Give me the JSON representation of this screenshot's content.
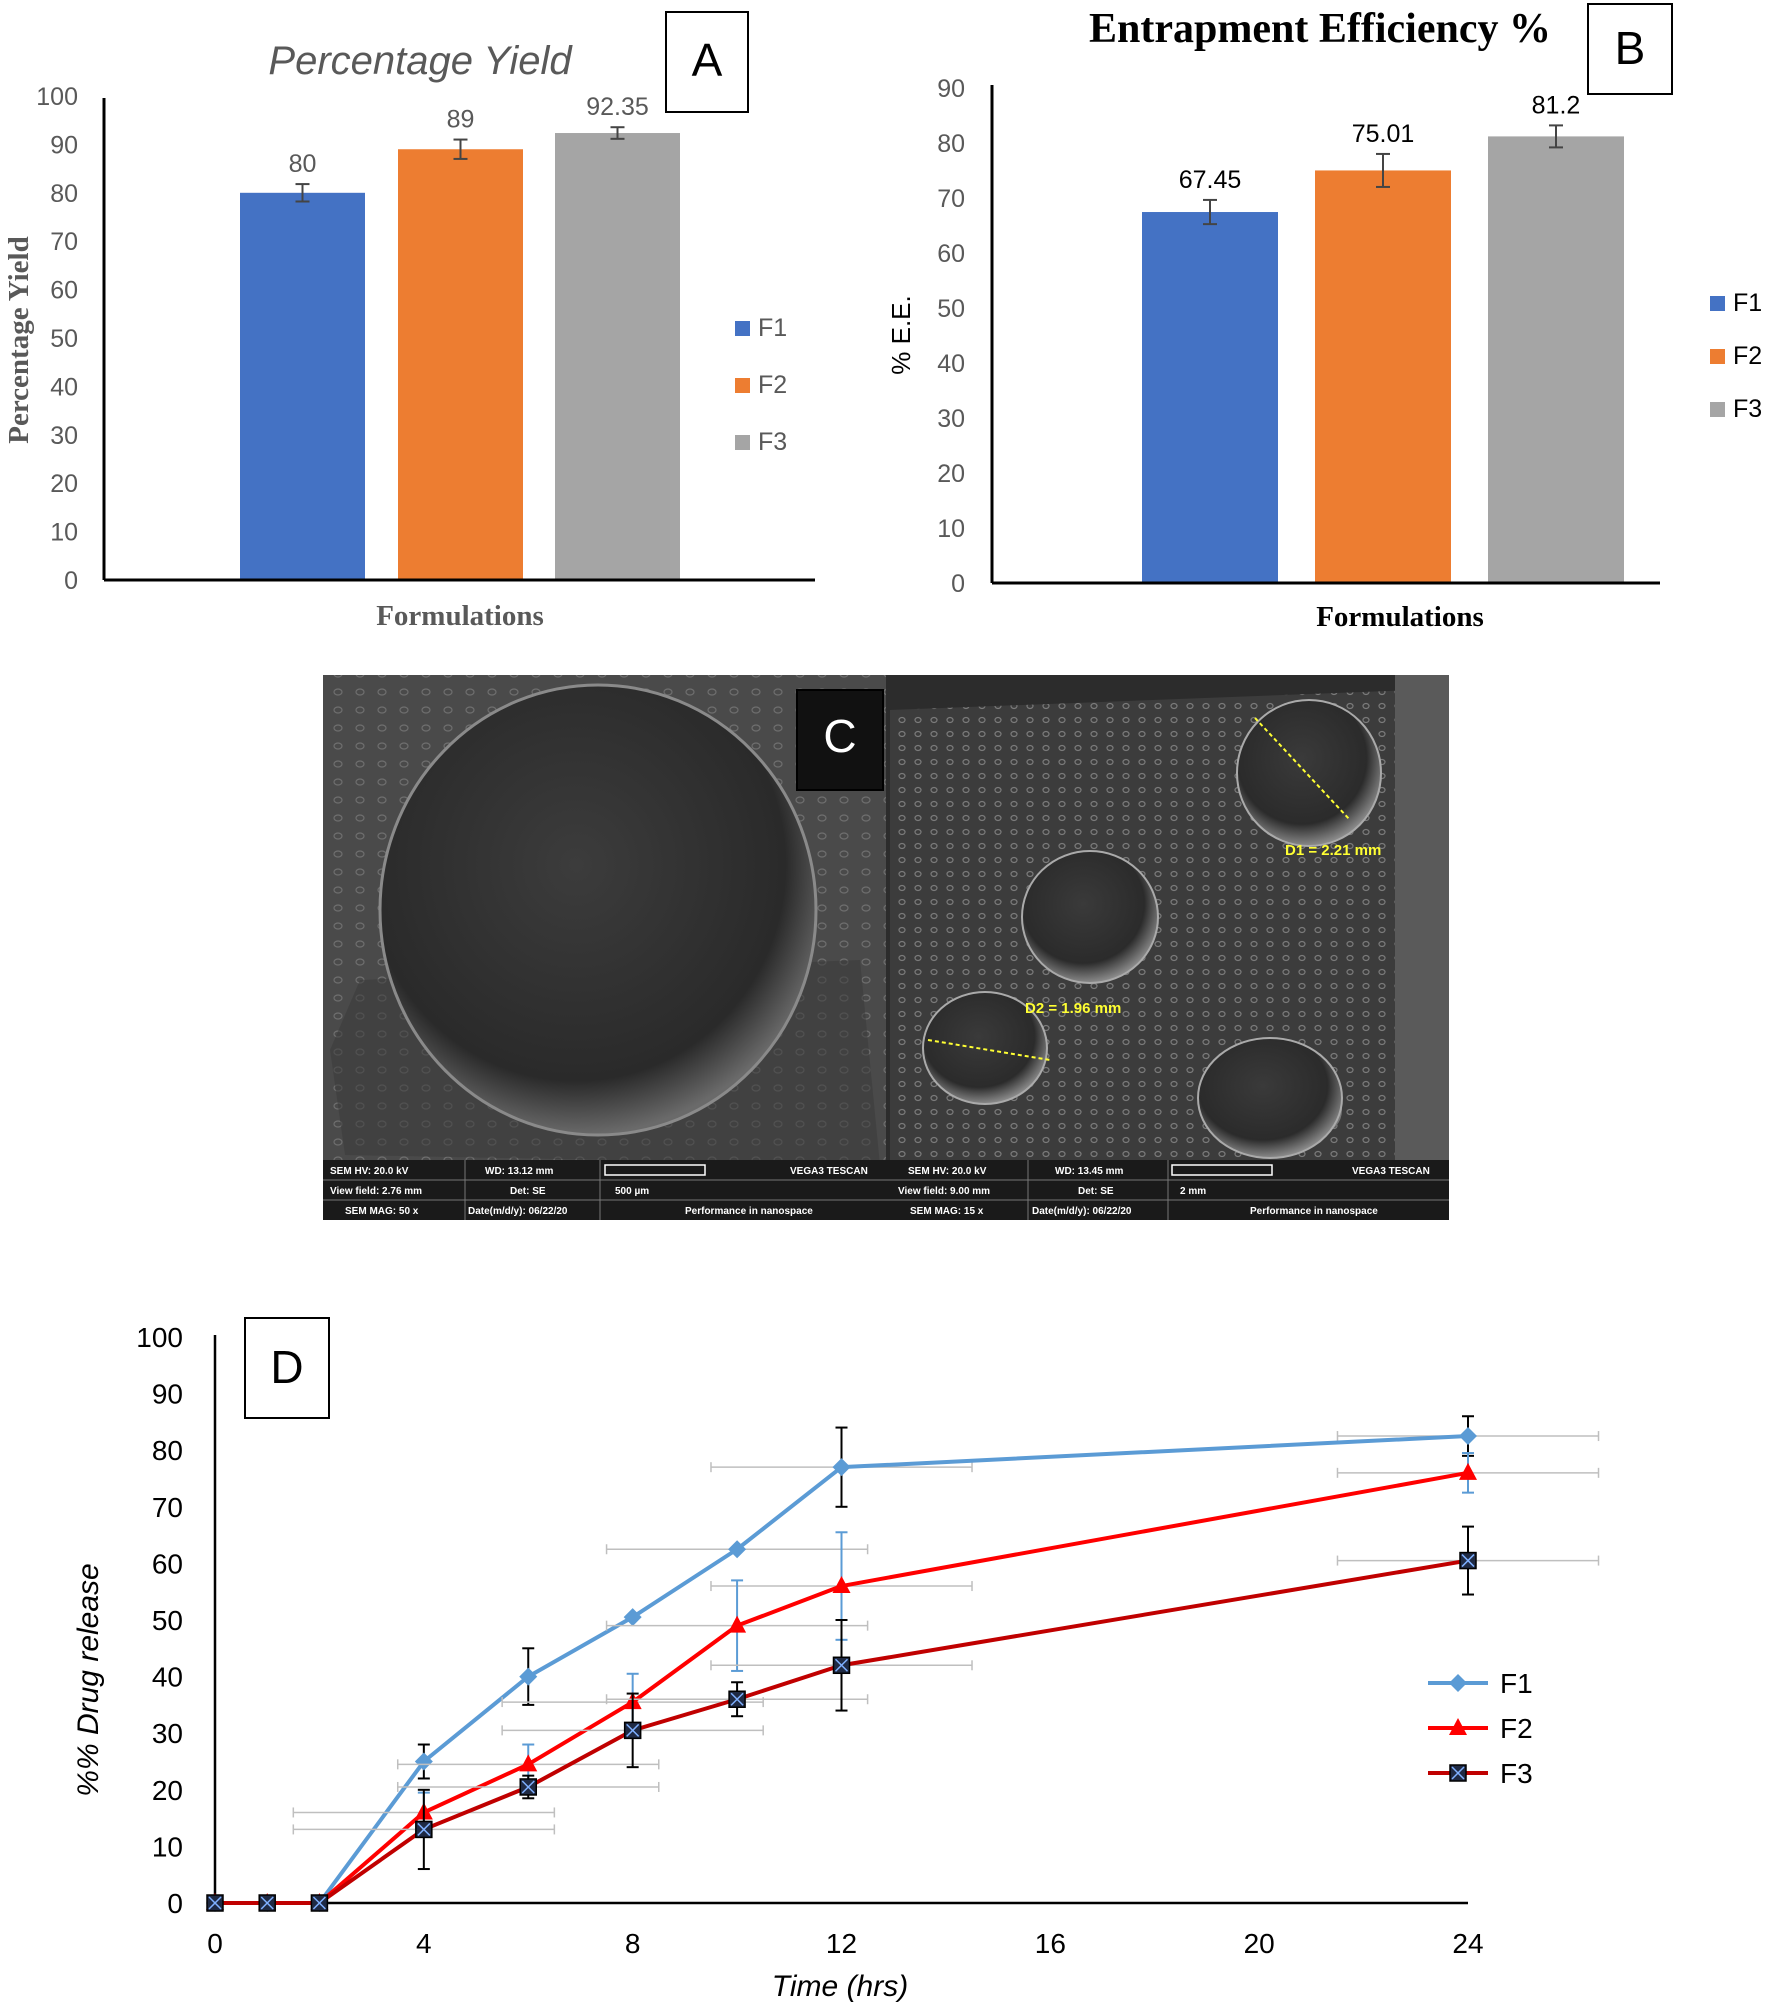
{
  "colors": {
    "f1": "#4472C4",
    "f2": "#ED7D31",
    "f3": "#A5A5A5",
    "lineF1": "#5B9BD5",
    "lineF2": "#FF0000",
    "lineF3": "#C00000"
  },
  "chart_data": [
    {
      "panel": "A",
      "type": "bar",
      "title": "Percentage Yield",
      "xlabel": "Formulations",
      "ylabel": "Percentage Yield",
      "ylim": [
        0,
        100
      ],
      "yticks": [
        "0",
        "10",
        "20",
        "30",
        "40",
        "50",
        "60",
        "70",
        "80",
        "90",
        "100"
      ],
      "series": [
        {
          "name": "F1",
          "value": 80,
          "label": "80",
          "error": 1.8
        },
        {
          "name": "F2",
          "value": 89,
          "label": "89",
          "error": 2.0
        },
        {
          "name": "F3",
          "value": 92.35,
          "label": "92.35",
          "error": 1.2
        }
      ],
      "legend_position": "right"
    },
    {
      "panel": "B",
      "type": "bar",
      "title": "Entrapment Efficiency %",
      "xlabel": "Formulations",
      "ylabel": "% E.E.",
      "ylim": [
        0,
        90
      ],
      "yticks": [
        "0",
        "10",
        "20",
        "30",
        "40",
        "50",
        "60",
        "70",
        "80",
        "90"
      ],
      "series": [
        {
          "name": "F1",
          "value": 67.45,
          "label": "67.45",
          "error": 2.2
        },
        {
          "name": "F2",
          "value": 75.01,
          "label": "75.01",
          "error": 3.0
        },
        {
          "name": "F3",
          "value": 81.2,
          "label": "81.2",
          "error": 2.0
        }
      ],
      "legend_position": "right"
    },
    {
      "panel": "D",
      "type": "line",
      "xlabel": "Time (hrs)",
      "ylabel": "%% Drug release",
      "xlim": [
        0,
        24
      ],
      "ylim": [
        0,
        100
      ],
      "xticks": [
        "0",
        "4",
        "8",
        "12",
        "16",
        "20",
        "24"
      ],
      "yticks": [
        "0",
        "10",
        "20",
        "30",
        "40",
        "50",
        "60",
        "70",
        "80",
        "90",
        "100"
      ],
      "x": [
        0,
        1,
        2,
        4,
        6,
        8,
        10,
        12,
        24
      ],
      "series": [
        {
          "name": "F1",
          "marker": "diamond",
          "values": [
            0,
            0,
            0,
            25,
            40,
            50.5,
            62.5,
            77,
            82.5
          ],
          "yerr": [
            0,
            0,
            0,
            3,
            5,
            0,
            0,
            7,
            3.5
          ],
          "xerr": [
            0,
            0,
            0,
            0,
            0,
            0,
            2.5,
            2.5,
            2.5
          ]
        },
        {
          "name": "F2",
          "marker": "triangle",
          "values": [
            0,
            0,
            0,
            16,
            24.5,
            35.5,
            49,
            56,
            76
          ],
          "yerr": [
            0,
            0,
            0,
            3.5,
            3.5,
            5,
            8,
            9.5,
            3.5
          ],
          "xerr": [
            0,
            0,
            0,
            2.5,
            2.5,
            2.5,
            2.5,
            2.5,
            2.5
          ]
        },
        {
          "name": "F3",
          "marker": "x-square",
          "values": [
            0,
            0,
            0,
            13,
            20.5,
            30.5,
            36,
            42,
            60.5
          ],
          "yerr": [
            0,
            0,
            0,
            7,
            2,
            6.5,
            3,
            8,
            6
          ],
          "xerr": [
            0,
            0,
            0,
            2.5,
            2.5,
            2.5,
            2.5,
            2.5,
            2.5
          ]
        }
      ],
      "legend_position": "right"
    }
  ],
  "panels": {
    "a_letter": "A",
    "b_letter": "B",
    "c_letter": "C",
    "d_letter": "D"
  },
  "sem": {
    "left": {
      "hv": "SEM HV: 20.0 kV",
      "wd": "WD: 13.12 mm",
      "brand": "VEGA3 TESCAN",
      "view_field": "View field: 2.76 mm",
      "det": "Det: SE",
      "scale": "500 µm",
      "mag": "SEM MAG: 50 x",
      "date": "Date(m/d/y): 06/22/20",
      "tagline": "Performance in nanospace"
    },
    "right": {
      "hv": "SEM HV: 20.0 kV",
      "wd": "WD: 13.45 mm",
      "brand": "VEGA3 TESCAN",
      "view_field": "View field: 9.00 mm",
      "det": "Det: SE",
      "scale": "2 mm",
      "mag": "SEM MAG: 15 x",
      "date": "Date(m/d/y): 06/22/20",
      "tagline": "Performance in nanospace",
      "d1": "D1 = 2.21 mm",
      "d2": "D2 = 1.96 mm"
    }
  }
}
